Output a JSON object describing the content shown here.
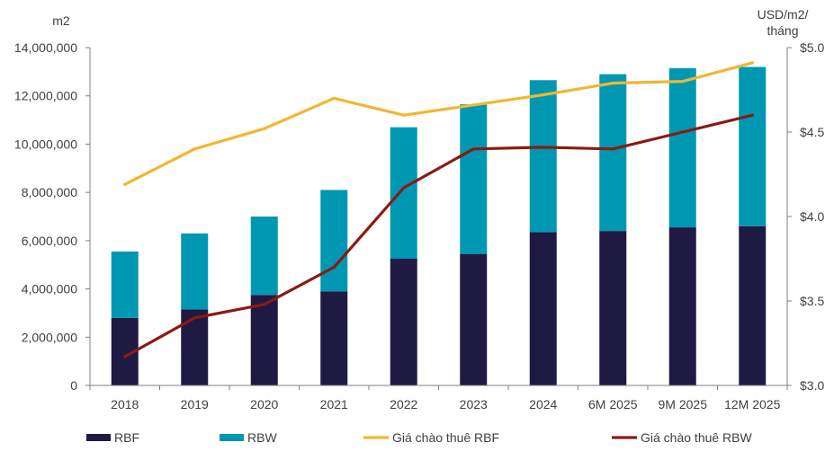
{
  "chart_data": {
    "type": "bar",
    "stacked": true,
    "categories": [
      "2018",
      "2019",
      "2020",
      "2021",
      "2022",
      "2023",
      "2024",
      "6M 2025",
      "9M 2025",
      "12M 2025"
    ],
    "series": [
      {
        "name": "RBF",
        "kind": "bar",
        "axis": "left",
        "color": "#1f1a44",
        "values": [
          2800000,
          3150000,
          3750000,
          3900000,
          5250000,
          5450000,
          6350000,
          6400000,
          6550000,
          6600000
        ]
      },
      {
        "name": "RBW",
        "kind": "bar",
        "axis": "left",
        "color": "#0097b2",
        "values": [
          2750000,
          3150000,
          3250000,
          4200000,
          5450000,
          6200000,
          6300000,
          6500000,
          6600000,
          6600000
        ]
      },
      {
        "name": "Giá chào thuê RBF",
        "kind": "line",
        "axis": "right",
        "color": "#f2b632",
        "values": [
          4.19,
          4.4,
          4.52,
          4.7,
          4.6,
          4.66,
          4.72,
          4.79,
          4.8,
          4.91
        ]
      },
      {
        "name": "Giá chào thuê RBW",
        "kind": "line",
        "axis": "right",
        "color": "#8b1a10",
        "values": [
          3.17,
          3.4,
          3.48,
          3.7,
          4.17,
          4.4,
          4.41,
          4.4,
          4.5,
          4.6
        ]
      }
    ],
    "y_left": {
      "unit_label": "m2",
      "ylim": [
        0,
        14000000
      ],
      "ticks": [
        "0",
        "2,000,000",
        "4,000,000",
        "6,000,000",
        "8,000,000",
        "10,000,000",
        "12,000,000",
        "14,000,000"
      ]
    },
    "y_right": {
      "unit_label_line1": "USD/m2/",
      "unit_label_line2": "tháng",
      "ylim": [
        3.0,
        5.0
      ],
      "ticks": [
        "$3.0",
        "$3.5",
        "$4.0",
        "$4.5",
        "$5.0"
      ]
    },
    "grid": false,
    "legend_position": "bottom"
  }
}
